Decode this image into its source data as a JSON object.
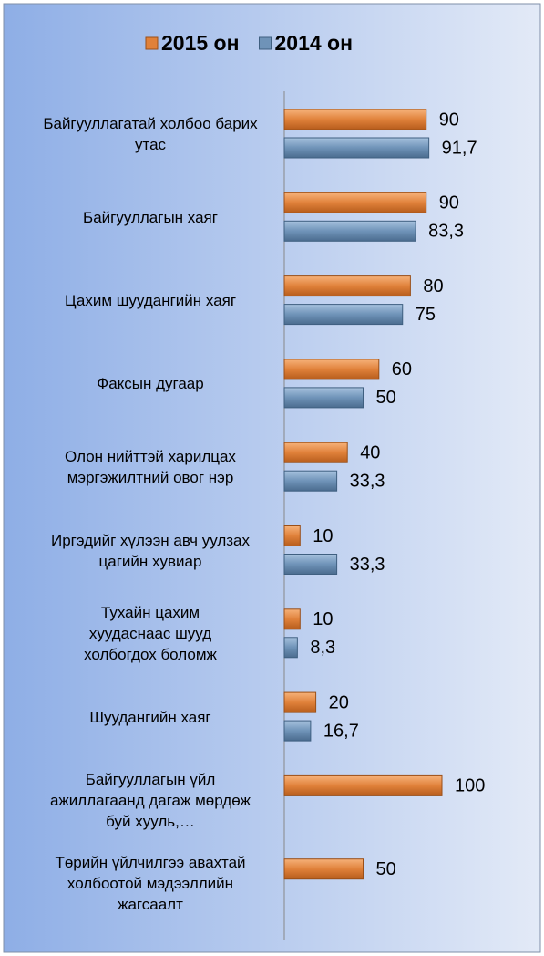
{
  "chart_data": {
    "type": "bar",
    "orientation": "horizontal",
    "categories": [
      "Байгууллагатай холбоо барих утас",
      "Байгууллагын хаяг",
      "Цахим шуудангийн хаяг",
      "Факсын дугаар",
      "Олон нийттэй харилцах мэргэжилтний овог нэр",
      "Иргэдийг хүлээн авч уулзах цагийн хувиар",
      "Тухайн цахим хуудаснаас шууд холбогдох боломж",
      "Шуудангийн хаяг",
      "Байгууллагын үйл ажиллагаанд дагаж мөрдөж буй хууль,…",
      "Төрийн үйлчилгээ авахтай холбоотой мэдээллийн жагсаалт"
    ],
    "series": [
      {
        "name": "2015 он",
        "color": "#e0813a",
        "values": [
          90,
          90,
          80,
          60,
          40,
          10,
          10,
          20,
          100,
          50
        ]
      },
      {
        "name": "2014 он",
        "color": "#6f93b8",
        "values": [
          91.7,
          83.3,
          75,
          50,
          33.3,
          33.3,
          8.3,
          16.7,
          null,
          null
        ],
        "value_labels": [
          "91,7",
          "83,3",
          "75",
          "50",
          "33,3",
          "33,3",
          "8,3",
          "16,7",
          null,
          null
        ]
      }
    ],
    "xlim": [
      0,
      100
    ],
    "legend": "top"
  }
}
